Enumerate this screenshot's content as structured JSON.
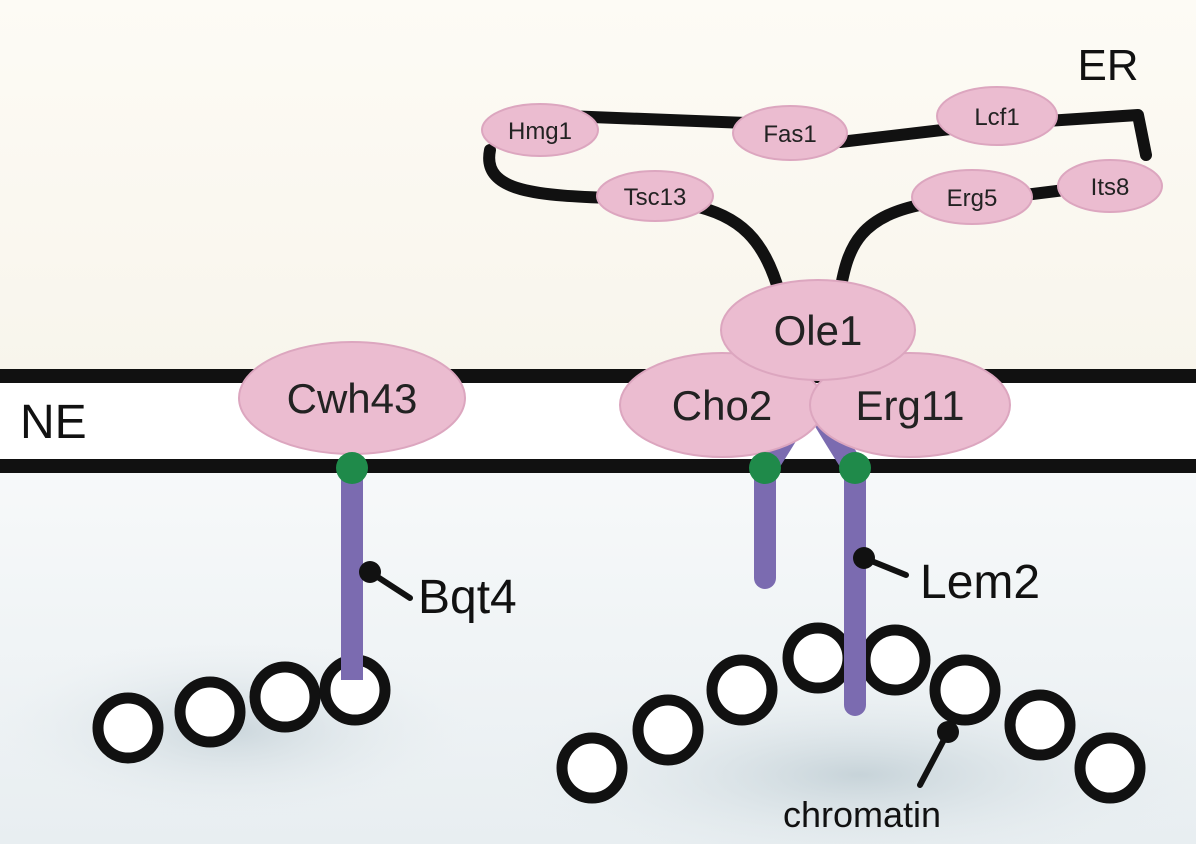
{
  "regions": {
    "er": "ER",
    "ne": "NE"
  },
  "er_proteins": {
    "hmg1": "Hmg1",
    "fas1": "Fas1",
    "lcf1": "Lcf1",
    "tsc13": "Tsc13",
    "erg5": "Erg5",
    "its8": "Its8"
  },
  "membrane_proteins": {
    "ole1": "Ole1",
    "cwh43": "Cwh43",
    "cho2": "Cho2",
    "erg11": "Erg11"
  },
  "inner_proteins": {
    "bqt4": "Bqt4",
    "lem2": "Lem2"
  },
  "chromatin_label": "chromatin",
  "colors": {
    "protein_fill": "#ebbcd0",
    "protein_stroke": "#d9a0ba",
    "tether": "#7b6bb0",
    "anchor": "#1f8a4a",
    "line": "#111111",
    "background_top": "#fbf8f0",
    "background_bottom": "#f1f5f7"
  }
}
